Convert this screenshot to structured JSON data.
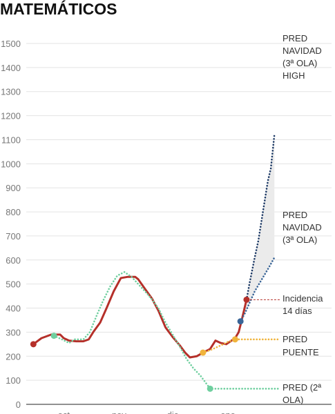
{
  "chart_data": {
    "type": "line",
    "title": "MATEMÁTICOS",
    "xlim": [
      9,
      151
    ],
    "xticks": [
      {
        "value": 30,
        "label": "oct"
      },
      {
        "value": 61,
        "label": "nov"
      },
      {
        "value": 91,
        "label": "dic"
      },
      {
        "value": 122,
        "label": "ene"
      }
    ],
    "ylim": [
      0,
      1500
    ],
    "yticks": [
      0,
      100,
      200,
      300,
      400,
      500,
      600,
      700,
      800,
      900,
      1000,
      1100,
      1200,
      1300,
      1400,
      1500
    ],
    "grid": true,
    "series": [
      {
        "label": [
          "Incidencia",
          "14 días"
        ],
        "color": "#b5302a",
        "style": "solid",
        "x": [
          13,
          17.5,
          23,
          28,
          30,
          33,
          37,
          41,
          44,
          46.5,
          50.4,
          54,
          58,
          62,
          66,
          70,
          71.7,
          75.5,
          79.4,
          83,
          87,
          91,
          95,
          98,
          100.7,
          104.5,
          108,
          112,
          115,
          118,
          121,
          124,
          126,
          128,
          129.7,
          132.4
        ],
        "values": [
          250,
          275,
          290,
          290,
          275,
          265,
          262,
          262,
          270,
          300,
          340,
          400,
          470,
          525,
          530,
          530,
          520,
          480,
          440,
          390,
          320,
          280,
          245,
          215,
          195,
          200,
          215,
          230,
          265,
          255,
          250,
          265,
          275,
          300,
          350,
          435
        ]
      },
      {
        "label": [
          "PRED (2ª",
          "OLA)"
        ],
        "color": "#6fcf9f",
        "style": "dotted",
        "x": [
          24.5,
          29,
          33,
          36,
          41,
          44.6,
          48.5,
          52,
          56,
          60,
          64,
          68,
          71.7,
          75.5,
          79,
          83,
          87,
          91,
          95,
          98.7,
          102.6,
          106.5,
          112,
          151
        ],
        "values": [
          285,
          270,
          255,
          270,
          270,
          300,
          370,
          430,
          490,
          535,
          550,
          530,
          500,
          470,
          440,
          400,
          340,
          290,
          240,
          190,
          150,
          120,
          65,
          65
        ]
      },
      {
        "label": [
          "PRED",
          "PUENTE"
        ],
        "color": "#f0b43c",
        "style": "dotted",
        "x": [
          108,
          112,
          118,
          122,
          126,
          151
        ],
        "values": [
          215,
          225,
          245,
          260,
          270,
          270
        ]
      },
      {
        "label": [
          "PRED",
          "NAVIDAD",
          "(3ª OLA)",
          "HIGH"
        ],
        "color": "#1d3a66",
        "style": "dotted",
        "x": [
          132.4,
          134,
          136.7,
          139,
          142,
          144.4,
          146,
          148
        ],
        "values": [
          435,
          500,
          600,
          680,
          820,
          930,
          980,
          1120
        ]
      },
      {
        "label": [
          "PRED",
          "NAVIDAD",
          "(3ª OLA)"
        ],
        "color": "#3a6597",
        "style": "dotted",
        "x": [
          129,
          131.6,
          134,
          137,
          141,
          145,
          148
        ],
        "values": [
          345,
          380,
          420,
          470,
          520,
          570,
          610
        ]
      }
    ]
  }
}
